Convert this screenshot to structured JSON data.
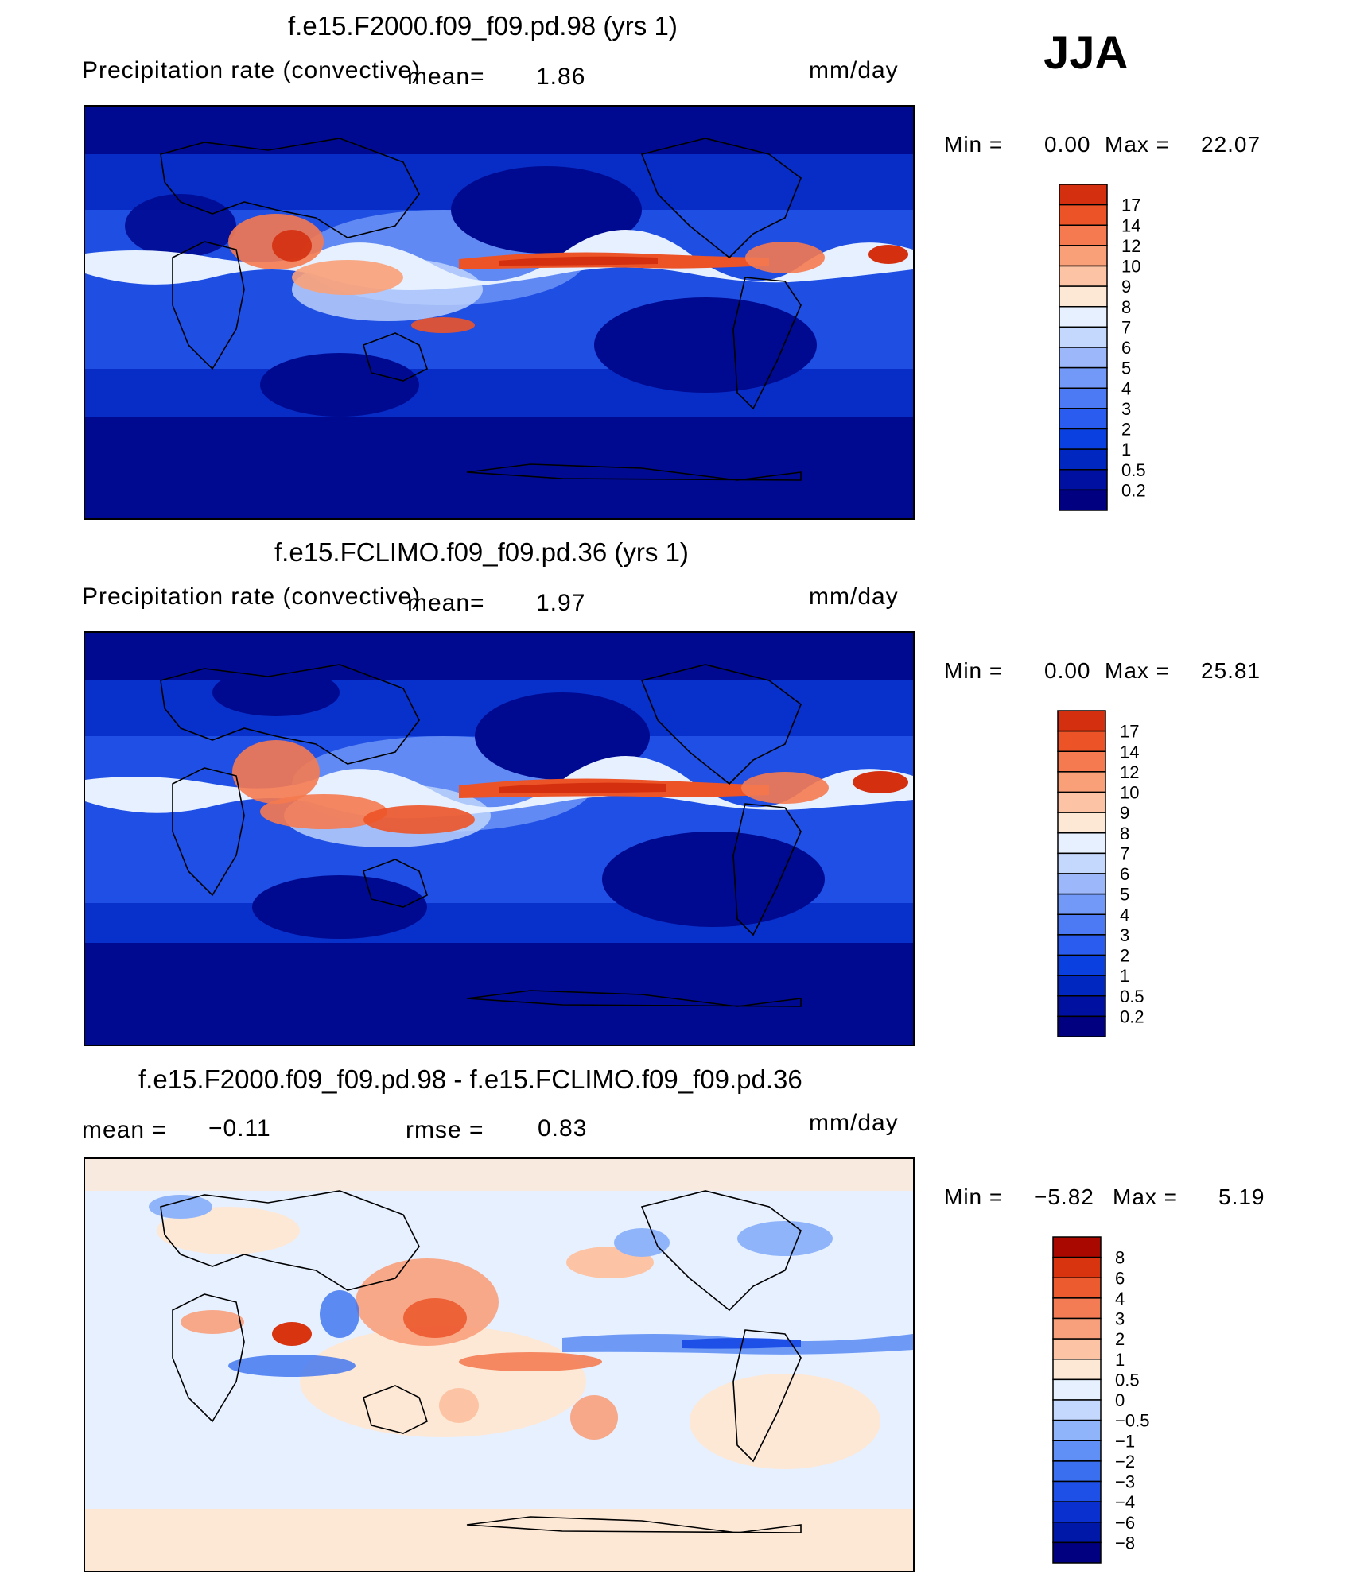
{
  "season": "JJA",
  "panels": [
    {
      "title": "f.e15.F2000.f09_f09.pd.98 (yrs 1)",
      "left_text": "Precipitation rate (convective)",
      "mean_label": "mean=",
      "mean_value": "1.86",
      "units": "mm/day",
      "min_label": "Min =",
      "min_value": "0.00",
      "max_label": "Max =",
      "max_value": "22.07",
      "colorbar_labels": [
        "17",
        "14",
        "12",
        "10",
        "9",
        "8",
        "7",
        "6",
        "5",
        "4",
        "3",
        "2",
        "1",
        "0.5",
        "0.2"
      ]
    },
    {
      "title": "f.e15.FCLIMO.f09_f09.pd.36 (yrs 1)",
      "left_text": "Precipitation rate (convective)",
      "mean_label": "mean=",
      "mean_value": "1.97",
      "units": "mm/day",
      "min_label": "Min =",
      "min_value": "0.00",
      "max_label": "Max =",
      "max_value": "25.81",
      "colorbar_labels": [
        "17",
        "14",
        "12",
        "10",
        "9",
        "8",
        "7",
        "6",
        "5",
        "4",
        "3",
        "2",
        "1",
        "0.5",
        "0.2"
      ]
    },
    {
      "title": "f.e15.F2000.f09_f09.pd.98 - f.e15.FCLIMO.f09_f09.pd.36",
      "mean_text": "mean =",
      "mean_value": "−0.11",
      "rmse_text": "rmse =",
      "rmse_value": "0.83",
      "units": "mm/day",
      "min_label": "Min =",
      "min_value": "−5.82",
      "max_label": "Max =",
      "max_value": "5.19",
      "colorbar_labels": [
        "8",
        "6",
        "4",
        "3",
        "2",
        "1",
        "0.5",
        "0",
        "−0.5",
        "−1",
        "−2",
        "−3",
        "−4",
        "−6",
        "−8"
      ]
    }
  ],
  "colors": {
    "precip_scale": [
      "#000080",
      "#0010a0",
      "#0028c0",
      "#0a40e0",
      "#2a5cf0",
      "#4c7af5",
      "#7298f8",
      "#9cb8fb",
      "#c4d8fd",
      "#e6f0ff",
      "#fde8d6",
      "#fcc4a4",
      "#f9a078",
      "#f57a50",
      "#ec5428",
      "#d43010",
      "#a80800"
    ],
    "diff_scale": [
      "#000080",
      "#0018a8",
      "#0a30d0",
      "#1e50e8",
      "#3a70f0",
      "#6090f5",
      "#90b4fa",
      "#c4d8fd",
      "#e6f0ff",
      "#fde8d6",
      "#fcc4a4",
      "#f8a07c",
      "#f47c54",
      "#ec5a30",
      "#d83410",
      "#a80800"
    ]
  },
  "chart_data": [
    {
      "type": "heatmap",
      "title": "f.e15.F2000.f09_f09.pd.98 (yrs 1)",
      "variable": "Precipitation rate (convective)",
      "units": "mm/day",
      "mean": 1.86,
      "min": 0.0,
      "max": 22.07,
      "contour_levels": [
        0.2,
        0.5,
        1,
        2,
        3,
        4,
        5,
        6,
        7,
        8,
        9,
        10,
        12,
        14,
        17
      ]
    },
    {
      "type": "heatmap",
      "title": "f.e15.FCLIMO.f09_f09.pd.36 (yrs 1)",
      "variable": "Precipitation rate (convective)",
      "units": "mm/day",
      "mean": 1.97,
      "min": 0.0,
      "max": 25.81,
      "contour_levels": [
        0.2,
        0.5,
        1,
        2,
        3,
        4,
        5,
        6,
        7,
        8,
        9,
        10,
        12,
        14,
        17
      ]
    },
    {
      "type": "heatmap",
      "title": "f.e15.F2000.f09_f09.pd.98 - f.e15.FCLIMO.f09_f09.pd.36",
      "units": "mm/day",
      "mean": -0.11,
      "rmse": 0.83,
      "min": -5.82,
      "max": 5.19,
      "contour_levels": [
        -8,
        -6,
        -4,
        -3,
        -2,
        -1,
        -0.5,
        0,
        0.5,
        1,
        2,
        3,
        4,
        6,
        8
      ]
    }
  ]
}
